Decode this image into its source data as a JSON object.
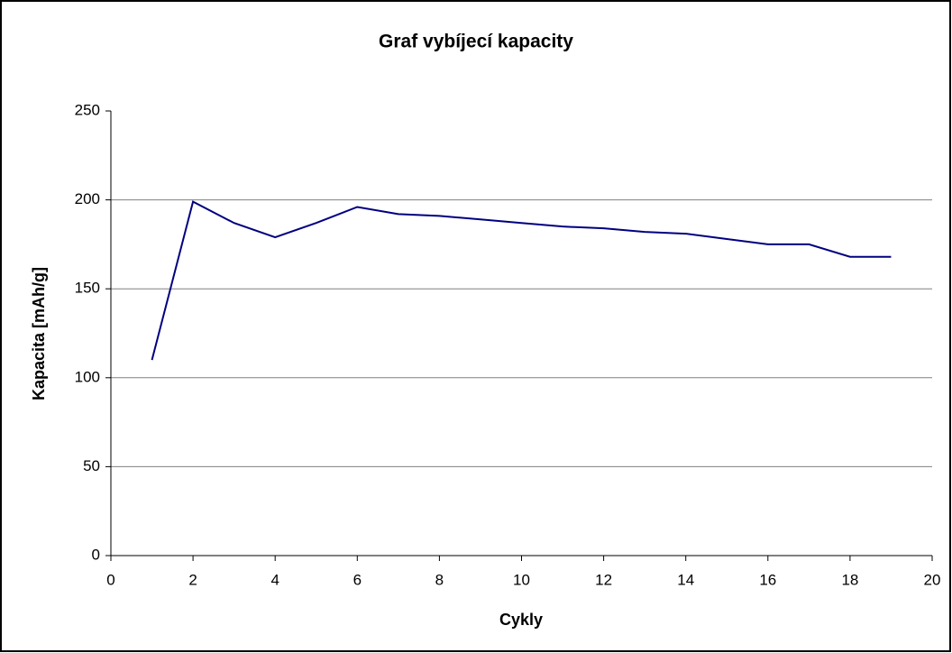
{
  "chart_data": {
    "type": "line",
    "title": "Graf vybíjecí kapacity",
    "x_label": "Cykly",
    "y_label": "Kapacita [mAh/g]",
    "x": [
      1,
      2,
      3,
      4,
      5,
      6,
      7,
      8,
      9,
      10,
      11,
      12,
      13,
      14,
      15,
      16,
      17,
      18,
      19
    ],
    "series": [
      {
        "color": "#000080",
        "values": [
          110,
          199,
          187,
          179,
          187,
          196,
          192,
          191,
          189,
          187,
          185,
          184,
          182,
          181,
          178,
          175,
          175,
          168,
          168
        ]
      }
    ],
    "xlim": [
      0,
      20
    ],
    "xticks": [
      0,
      2,
      4,
      6,
      8,
      10,
      12,
      14,
      16,
      18,
      20
    ],
    "ylim": [
      0,
      250
    ],
    "yticks": [
      0,
      50,
      100,
      150,
      200,
      250
    ],
    "grid": true
  }
}
